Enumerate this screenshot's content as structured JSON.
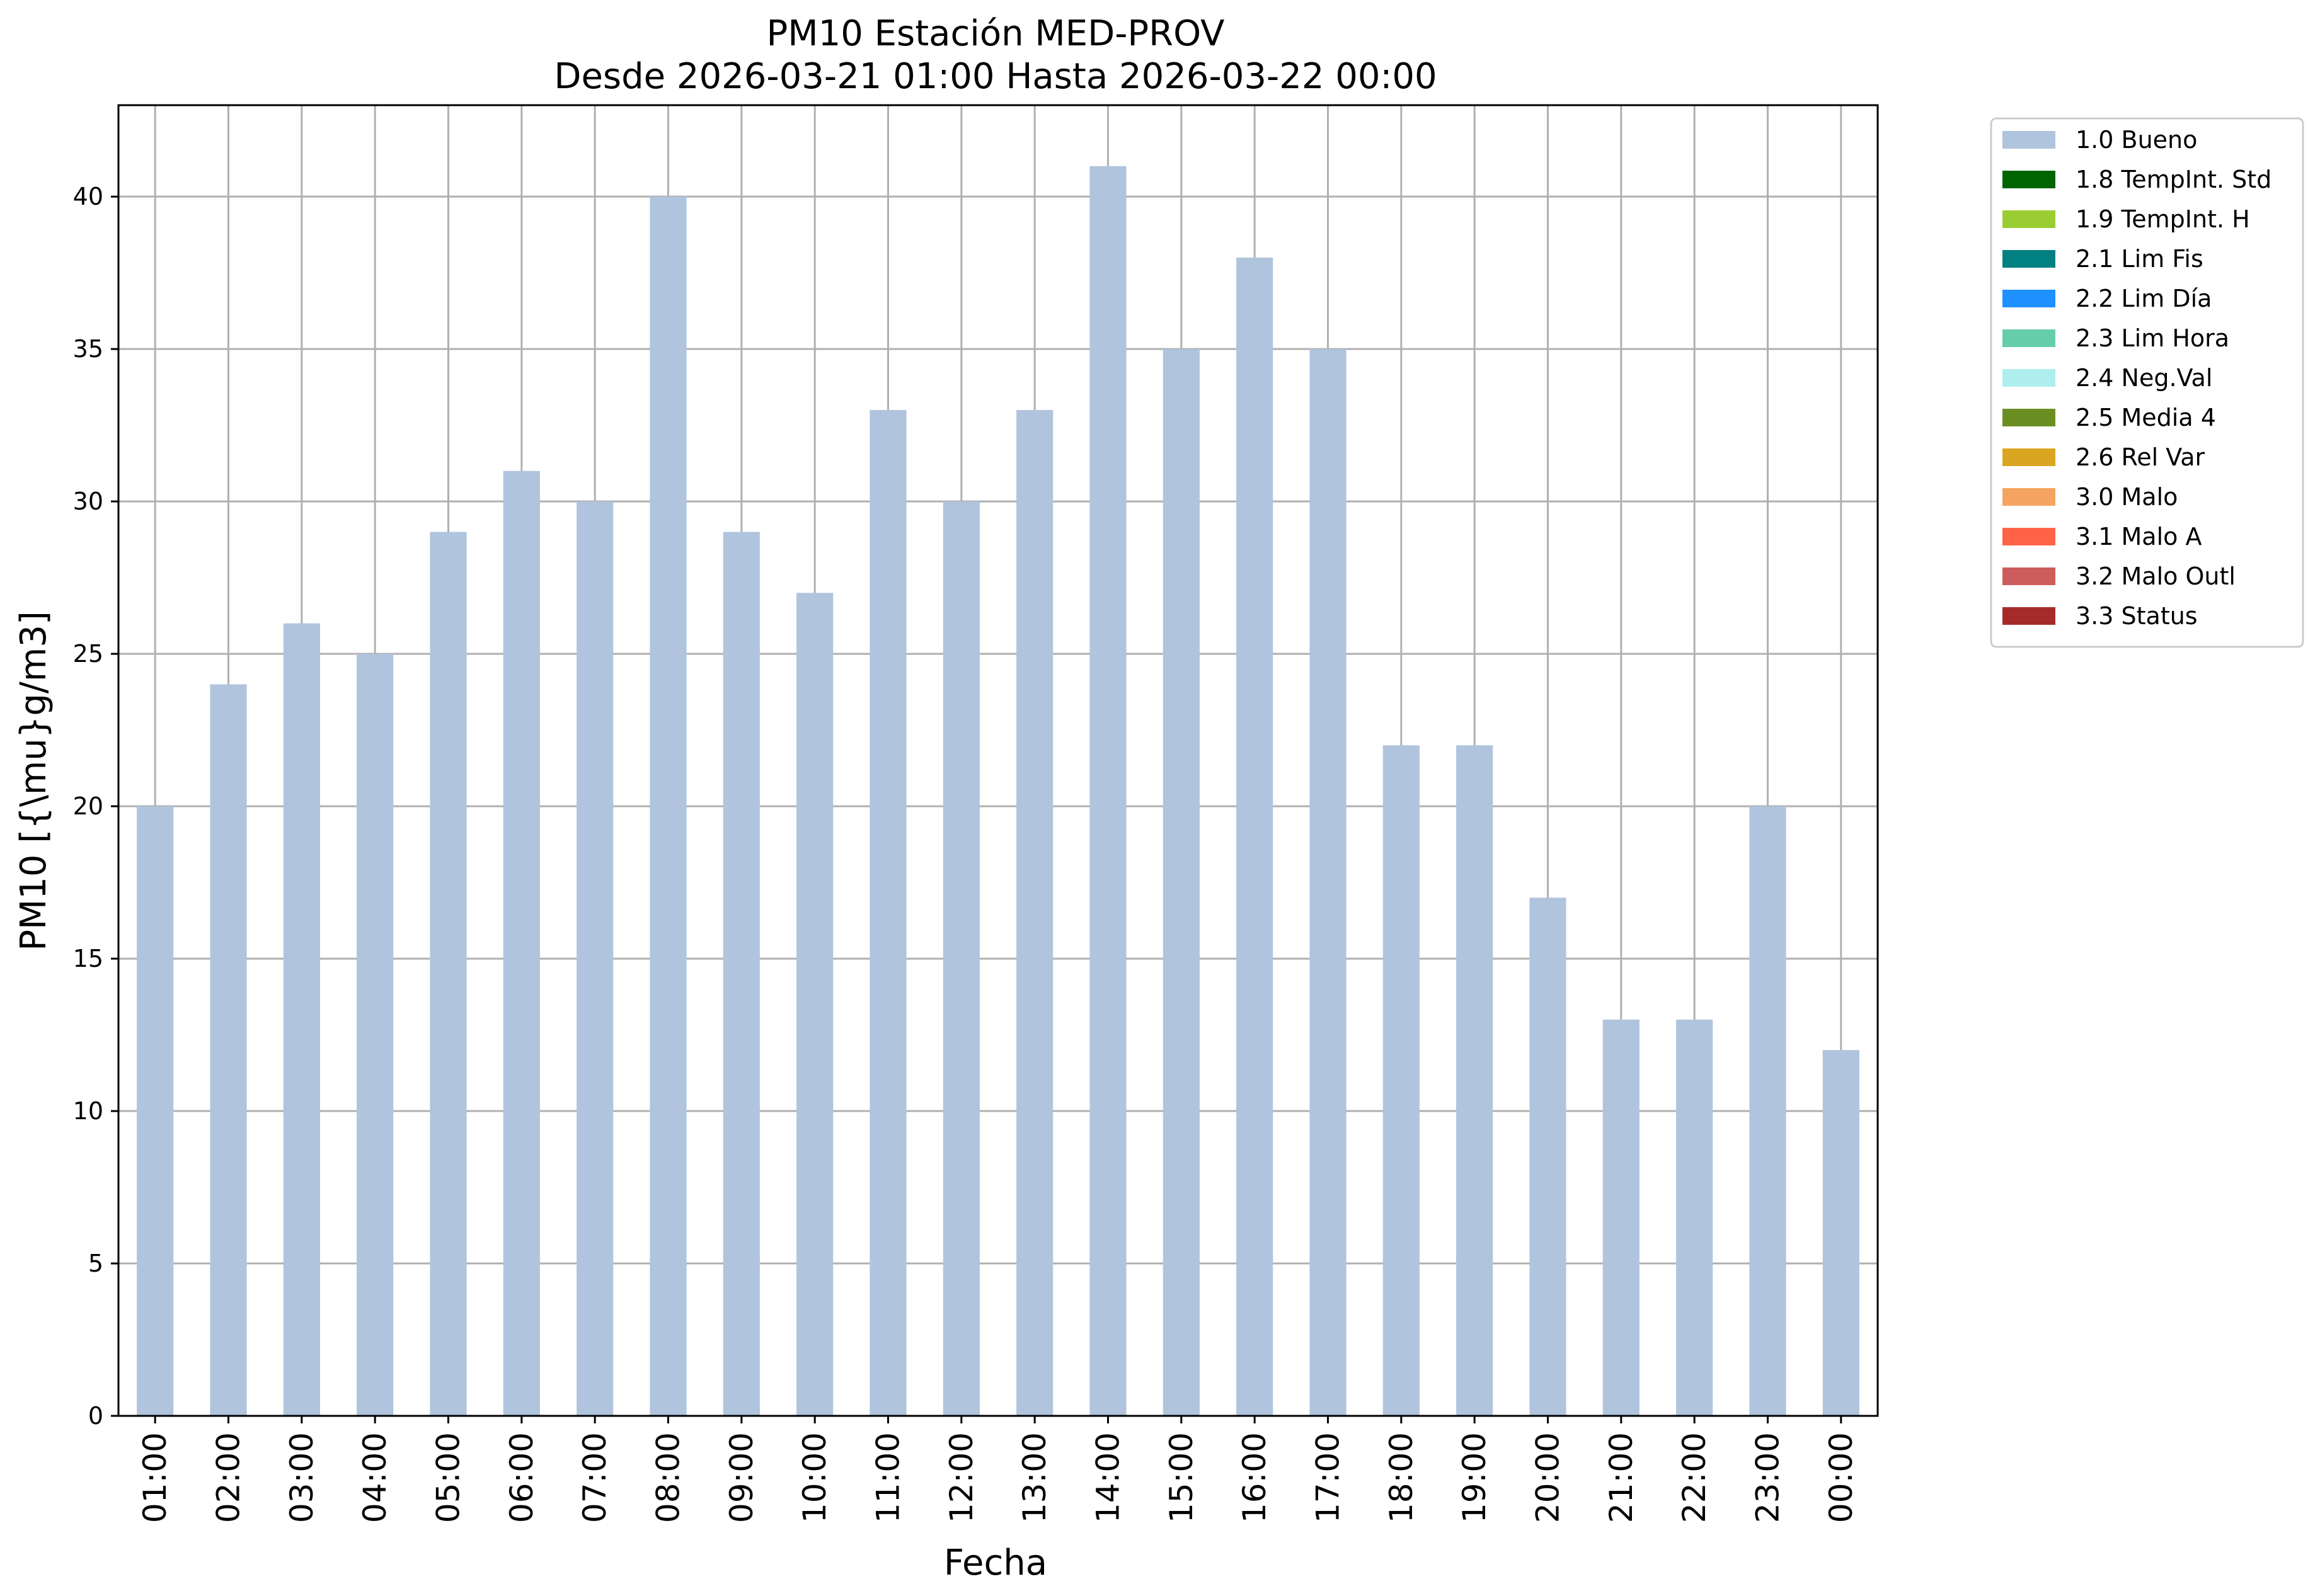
{
  "chart_data": {
    "type": "bar",
    "title": "PM10 Estación MED-PROV",
    "subtitle": "Desde 2026-03-21 01:00 Hasta 2026-03-22 00:00",
    "xlabel": "Fecha",
    "ylabel": "PM10 [{\\mu}g/m3]",
    "categories": [
      "01:00",
      "02:00",
      "03:00",
      "04:00",
      "05:00",
      "06:00",
      "07:00",
      "08:00",
      "09:00",
      "10:00",
      "11:00",
      "12:00",
      "13:00",
      "14:00",
      "15:00",
      "16:00",
      "17:00",
      "18:00",
      "19:00",
      "20:00",
      "21:00",
      "22:00",
      "23:00",
      "00:00"
    ],
    "series": [
      {
        "name": "1.0 Bueno",
        "color": "#b0c4de",
        "values": [
          20,
          24,
          26,
          25,
          29,
          31,
          30,
          40,
          29,
          27,
          33,
          30,
          33,
          41,
          35,
          38,
          35,
          22,
          22,
          17,
          13,
          13,
          20,
          12
        ]
      }
    ],
    "ylim": [
      0,
      43
    ],
    "yticks": [
      0,
      5,
      10,
      15,
      20,
      25,
      30,
      35,
      40
    ],
    "grid": true,
    "legend_position": "outside-top-right",
    "legend": [
      {
        "label": "1.0 Bueno",
        "color": "#b0c4de"
      },
      {
        "label": "1.8 TempInt. Std",
        "color": "#006400"
      },
      {
        "label": "1.9 TempInt. H",
        "color": "#9acd32"
      },
      {
        "label": "2.1 Lim Fis",
        "color": "#008080"
      },
      {
        "label": "2.2 Lim Día",
        "color": "#1e90ff"
      },
      {
        "label": "2.3 Lim Hora",
        "color": "#66cdaa"
      },
      {
        "label": "2.4 Neg.Val",
        "color": "#afeeee"
      },
      {
        "label": "2.5 Media 4",
        "color": "#6b8e23"
      },
      {
        "label": "2.6 Rel Var",
        "color": "#daa520"
      },
      {
        "label": "3.0 Malo",
        "color": "#f4a460"
      },
      {
        "label": "3.1 Malo A",
        "color": "#ff6347"
      },
      {
        "label": "3.2 Malo Outl",
        "color": "#cd5c5c"
      },
      {
        "label": "3.3 Status",
        "color": "#a52a2a"
      }
    ]
  }
}
